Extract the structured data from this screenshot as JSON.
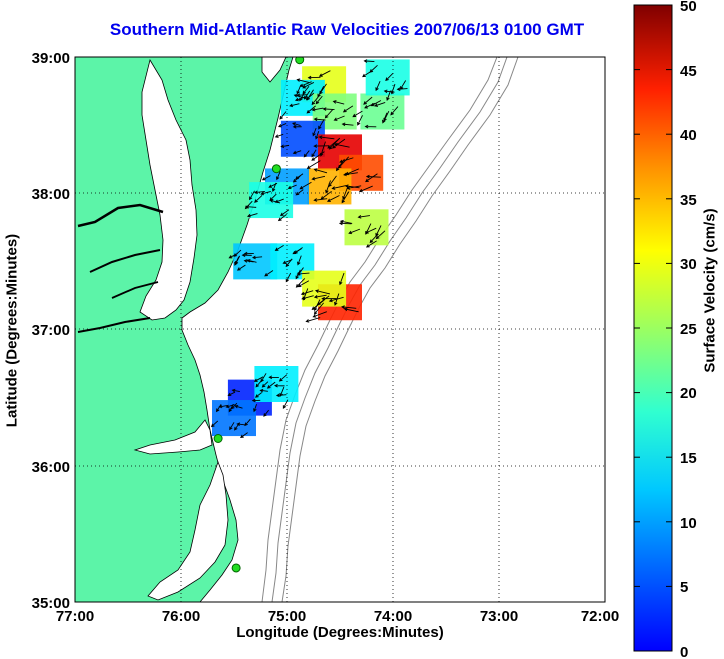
{
  "title": "Southern Mid-Atlantic Raw Velocities 2007/06/13 0100 GMT",
  "x_axis": {
    "label": "Longitude (Degrees:Minutes)",
    "ticks": [
      "77:00",
      "76:00",
      "75:00",
      "74:00",
      "73:00",
      "72:00"
    ],
    "range_deg_west": [
      77,
      72
    ]
  },
  "y_axis": {
    "label": "Latitude (Degrees:Minutes)",
    "ticks": [
      "39:00",
      "38:00",
      "37:00",
      "36:00",
      "35:00"
    ],
    "range_deg_north": [
      35,
      39
    ]
  },
  "colorbar": {
    "label": "Surface Velocity (cm/s)",
    "ticks": [
      "0",
      "5",
      "10",
      "15",
      "20",
      "25",
      "30",
      "35",
      "40",
      "45",
      "50"
    ],
    "range": [
      0,
      50
    ],
    "colormap": "jet"
  },
  "colors": {
    "land": "#5cf4a8",
    "water": "#ffffff",
    "coastline": "#000000",
    "bathymetry": "#888888",
    "station_marker": "#22dd22",
    "title": "#0000ee",
    "grid": "#000000"
  },
  "stations": [
    {
      "lon": 74.88,
      "lat": 38.98
    },
    {
      "lon": 75.1,
      "lat": 38.18
    },
    {
      "lon": 75.65,
      "lat": 36.2
    },
    {
      "lon": 75.48,
      "lat": 35.25
    }
  ],
  "velocity_patches": [
    {
      "lon": 74.65,
      "lat": 38.8,
      "speed": 30
    },
    {
      "lon": 74.85,
      "lat": 38.7,
      "speed": 18
    },
    {
      "lon": 74.55,
      "lat": 38.6,
      "speed": 25
    },
    {
      "lon": 74.85,
      "lat": 38.4,
      "speed": 10
    },
    {
      "lon": 74.5,
      "lat": 38.3,
      "speed": 45
    },
    {
      "lon": 74.3,
      "lat": 38.15,
      "speed": 40
    },
    {
      "lon": 74.6,
      "lat": 38.05,
      "speed": 35
    },
    {
      "lon": 75.0,
      "lat": 38.05,
      "speed": 14
    },
    {
      "lon": 75.15,
      "lat": 37.95,
      "speed": 20
    },
    {
      "lon": 74.25,
      "lat": 37.75,
      "speed": 28
    },
    {
      "lon": 74.1,
      "lat": 38.6,
      "speed": 24
    },
    {
      "lon": 74.05,
      "lat": 38.85,
      "speed": 20
    },
    {
      "lon": 75.3,
      "lat": 37.5,
      "speed": 16
    },
    {
      "lon": 74.95,
      "lat": 37.5,
      "speed": 18
    },
    {
      "lon": 74.5,
      "lat": 37.2,
      "speed": 42
    },
    {
      "lon": 74.65,
      "lat": 37.3,
      "speed": 30
    },
    {
      "lon": 75.35,
      "lat": 36.5,
      "speed": 8
    },
    {
      "lon": 75.1,
      "lat": 36.6,
      "speed": 18
    },
    {
      "lon": 75.5,
      "lat": 36.35,
      "speed": 12
    }
  ]
}
